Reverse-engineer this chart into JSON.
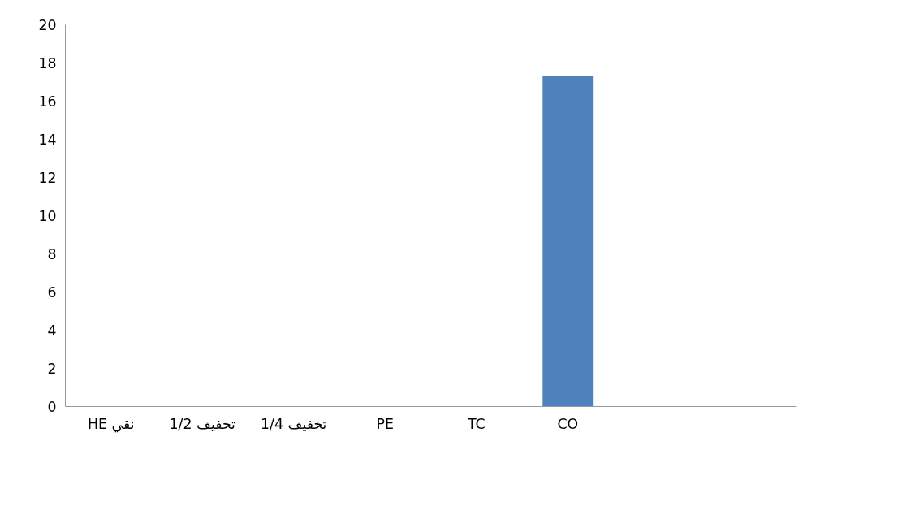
{
  "chart_data": {
    "type": "bar",
    "categories": [
      "HE نقي",
      "1/2 تخفيف",
      "تخفيف 1/4",
      "PE",
      "TC",
      "CO",
      null,
      null
    ],
    "series": [
      {
        "color": "#4f81bd",
        "values": [
          0,
          0,
          0,
          0,
          0,
          17.3,
          null,
          null
        ]
      }
    ],
    "ylim": [
      0,
      20
    ],
    "yticks": [
      0,
      2,
      4,
      6,
      8,
      10,
      12,
      14,
      16,
      18,
      20
    ],
    "grid": false
  }
}
